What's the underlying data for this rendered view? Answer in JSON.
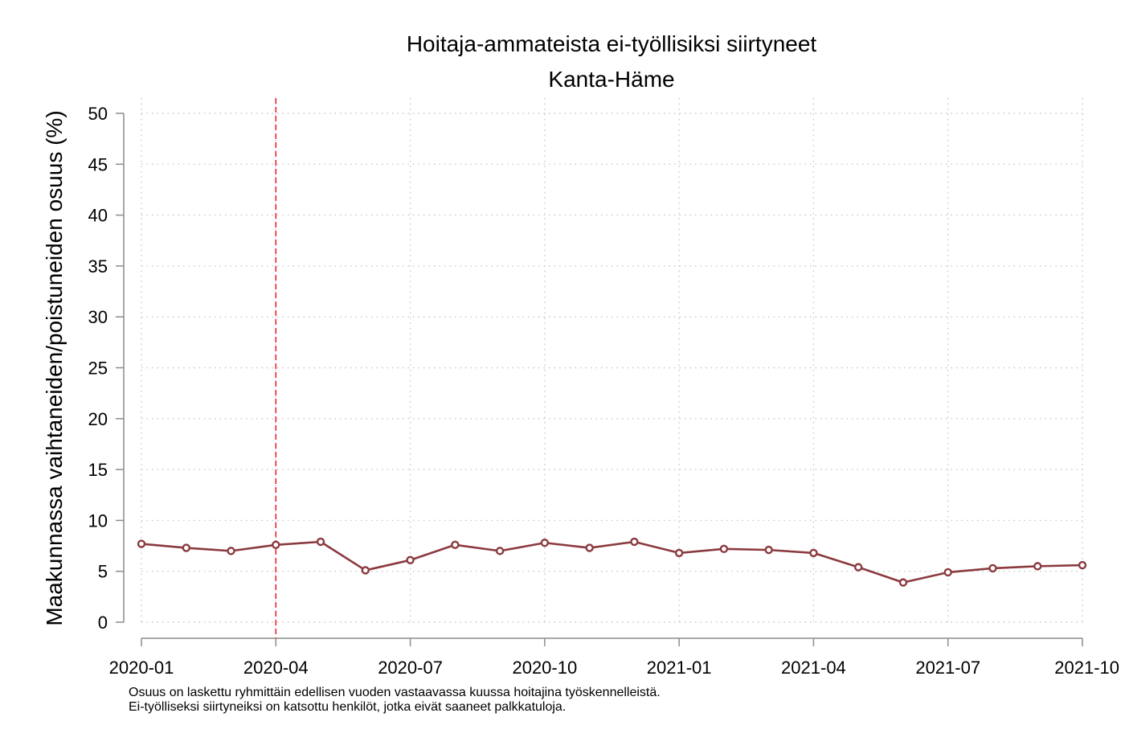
{
  "chart_data": {
    "type": "line",
    "title": "Hoitaja-ammateista ei-työllisiksi siirtyneet",
    "subtitle": "Kanta-Häme",
    "xlabel": "",
    "ylabel": "Maakunnassa vaihtaneiden/poistuneiden osuus (%)",
    "ylim": [
      0,
      50
    ],
    "yticks": [
      "0",
      "5",
      "10",
      "15",
      "20",
      "25",
      "30",
      "35",
      "40",
      "45",
      "50"
    ],
    "xticks": [
      "2020-01",
      "2020-04",
      "2020-07",
      "2020-10",
      "2021-01",
      "2021-04",
      "2021-07",
      "2021-10"
    ],
    "x": [
      "2020-01",
      "2020-02",
      "2020-03",
      "2020-04",
      "2020-05",
      "2020-06",
      "2020-07",
      "2020-08",
      "2020-09",
      "2020-10",
      "2020-11",
      "2020-12",
      "2021-01",
      "2021-02",
      "2021-03",
      "2021-04",
      "2021-05",
      "2021-06",
      "2021-07",
      "2021-08",
      "2021-09",
      "2021-10"
    ],
    "series": [
      {
        "values": [
          7.7,
          7.3,
          7.0,
          7.6,
          7.9,
          5.1,
          6.1,
          7.6,
          7.0,
          7.8,
          7.3,
          7.9,
          6.8,
          7.2,
          7.1,
          6.8,
          5.4,
          3.9,
          4.9,
          5.3,
          5.5,
          5.6
        ]
      }
    ],
    "reference_line": {
      "x": "2020-04",
      "style": "dashed",
      "color": "#e8262b"
    },
    "grid": true,
    "line_color": "#8b3a3f"
  },
  "notes": [
    "Osuus on laskettu ryhmittäin edellisen vuoden vastaavassa kuussa hoitajina työskennelleistä.",
    "Ei-työlliseksi siirtyneiksi on katsottu henkilöt, jotka eivät saaneet palkkatuloja."
  ]
}
